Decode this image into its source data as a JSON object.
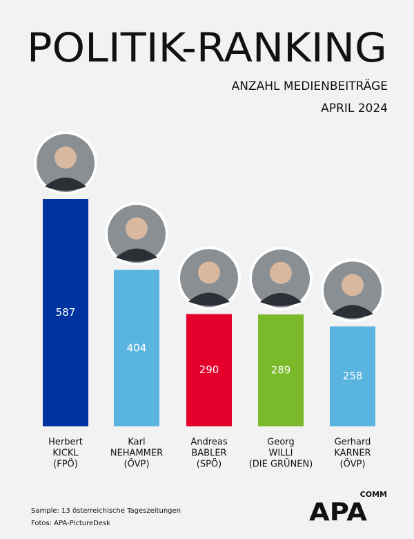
{
  "chart_data": {
    "type": "bar",
    "title": "POLITIK-RANKING",
    "subtitle": "ANZAHL MEDIENBEITRÄGE",
    "date": "APRIL 2024",
    "categories": [
      [
        "Herbert",
        "KICKL",
        "(FPÖ)"
      ],
      [
        "Karl",
        "NEHAMMER",
        "(ÖVP)"
      ],
      [
        "Andreas",
        "BABLER",
        "(SPÖ)"
      ],
      [
        "Georg",
        "WILLI",
        "(DIE GRÜNEN)"
      ],
      [
        "Gerhard",
        "KARNER",
        "(ÖVP)"
      ]
    ],
    "values": [
      587,
      404,
      290,
      289,
      258
    ],
    "colors": [
      "#0033a0",
      "#5ab4e0",
      "#e4002b",
      "#7ab929",
      "#5ab4e0"
    ],
    "notes": [
      "Sample: 13 österreichische Tageszeitungen",
      "Fotos: APA-PictureDesk"
    ],
    "logo": {
      "name": "APA",
      "suffix": "COMM"
    }
  }
}
